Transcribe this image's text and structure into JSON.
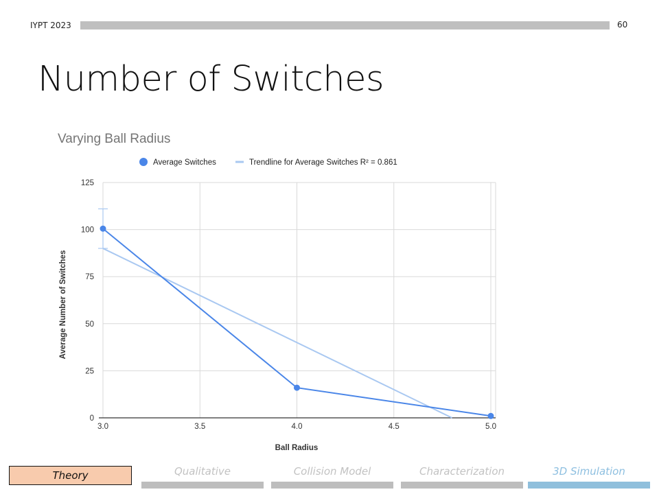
{
  "header": {
    "label": "IYPT 2023",
    "page_number": "60"
  },
  "slide": {
    "title": "Number of Switches"
  },
  "nav": {
    "current": "Theory",
    "items": [
      {
        "label": "Qualitative",
        "active": false
      },
      {
        "label": "Collision Model",
        "active": false
      },
      {
        "label": "Characterization",
        "active": false
      },
      {
        "label": "3D Simulation",
        "active": true
      }
    ]
  },
  "colors": {
    "series": "#4a86e8",
    "trendline": "#a9c8f1",
    "grid": "#d9d9d9",
    "active_nav": "#8fbfdc",
    "theory_box": "#f8cbad"
  },
  "chart_data": {
    "type": "line",
    "title": "Varying Ball Radius",
    "xlabel": "Ball Radius",
    "ylabel": "Average Number of Switches",
    "xlim": [
      3.0,
      5.0
    ],
    "ylim": [
      0,
      125
    ],
    "x_ticks": [
      "3.0",
      "3.5",
      "4.0",
      "4.5",
      "5.0"
    ],
    "y_ticks": [
      "0",
      "25",
      "50",
      "75",
      "100",
      "125"
    ],
    "grid": true,
    "legend_position": "top",
    "series": [
      {
        "name": "Average Switches",
        "x": [
          3.0,
          4.0,
          5.0
        ],
        "y": [
          100.5,
          16,
          1
        ],
        "error_bar_at_x3": [
          90,
          111
        ]
      },
      {
        "name": "Trendline for Average Switches R² = 0.861",
        "type": "trendline",
        "x": [
          3.0,
          4.8
        ],
        "y": [
          90,
          0
        ]
      }
    ]
  }
}
